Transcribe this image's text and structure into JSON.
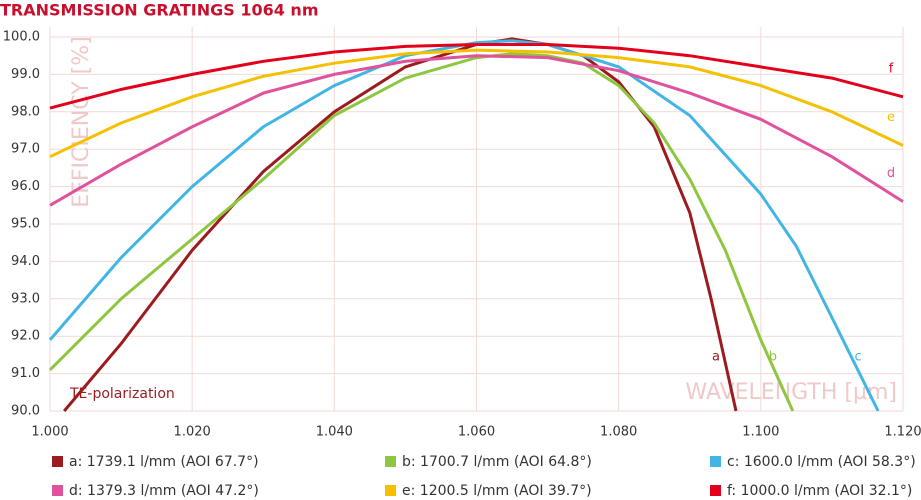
{
  "chart_data": {
    "type": "line",
    "title": "TRANSMISSION GRATINGS 1064 nm",
    "ylabel": "EFFICIENCY [%]",
    "xlabel": "WAVELENGTH [µm]",
    "annotation": "TE-polarization",
    "xlim": [
      1.0,
      1.12
    ],
    "ylim": [
      90,
      100
    ],
    "grid": true,
    "xticks": [
      {
        "value": 1.0,
        "label": "1.000"
      },
      {
        "value": 1.02,
        "label": "1.020"
      },
      {
        "value": 1.04,
        "label": "1.040"
      },
      {
        "value": 1.06,
        "label": "1.060"
      },
      {
        "value": 1.08,
        "label": "1.080"
      },
      {
        "value": 1.1,
        "label": "1.100"
      },
      {
        "value": 1.12,
        "label": "1.120"
      }
    ],
    "yticks": [
      {
        "value": 90,
        "label": "90.0"
      },
      {
        "value": 91,
        "label": "91.0"
      },
      {
        "value": 92,
        "label": "92.0"
      },
      {
        "value": 93,
        "label": "93.0"
      },
      {
        "value": 94,
        "label": "94.0"
      },
      {
        "value": 95,
        "label": "95.0"
      },
      {
        "value": 96,
        "label": "96.0"
      },
      {
        "value": 97,
        "label": "97.0"
      },
      {
        "value": 98,
        "label": "98.0"
      },
      {
        "value": 99,
        "label": "99.0"
      },
      {
        "value": 100,
        "label": "100.0"
      }
    ],
    "series": [
      {
        "name": "a: 1739.1 l/mm (AOI 67.7°)",
        "label": "a",
        "color": "#9b1b1e",
        "x": [
          1.002,
          1.01,
          1.02,
          1.03,
          1.04,
          1.05,
          1.06,
          1.065,
          1.07,
          1.075,
          1.08,
          1.085,
          1.09,
          1.093,
          1.0965
        ],
        "values": [
          90.0,
          91.8,
          94.3,
          96.4,
          98.0,
          99.2,
          99.8,
          99.95,
          99.8,
          99.5,
          98.8,
          97.6,
          95.3,
          93.0,
          90.0
        ]
      },
      {
        "name": "b: 1700.7 l/mm (AOI 64.8°)",
        "label": "b",
        "color": "#8dc63f",
        "x": [
          1.0,
          1.01,
          1.02,
          1.03,
          1.04,
          1.05,
          1.06,
          1.065,
          1.07,
          1.075,
          1.08,
          1.085,
          1.09,
          1.095,
          1.1,
          1.1045
        ],
        "values": [
          91.1,
          93.0,
          94.6,
          96.2,
          97.9,
          98.9,
          99.45,
          99.55,
          99.5,
          99.3,
          98.7,
          97.7,
          96.2,
          94.3,
          91.9,
          90.0
        ]
      },
      {
        "name": "c: 1600.0 l/mm (AOI 58.3°)",
        "label": "c",
        "color": "#41b6e6",
        "x": [
          1.0,
          1.01,
          1.02,
          1.03,
          1.04,
          1.05,
          1.06,
          1.065,
          1.07,
          1.08,
          1.09,
          1.1,
          1.105,
          1.11,
          1.1165
        ],
        "values": [
          91.9,
          94.1,
          96.0,
          97.6,
          98.7,
          99.5,
          99.85,
          99.9,
          99.8,
          99.2,
          97.9,
          95.8,
          94.4,
          92.5,
          90.0
        ]
      },
      {
        "name": "d: 1379.3 l/mm (AOI 47.2°)",
        "label": "d",
        "color": "#e0529c",
        "x": [
          1.0,
          1.01,
          1.02,
          1.03,
          1.04,
          1.05,
          1.06,
          1.07,
          1.08,
          1.09,
          1.1,
          1.11,
          1.12
        ],
        "values": [
          95.5,
          96.6,
          97.6,
          98.5,
          99.0,
          99.35,
          99.5,
          99.45,
          99.1,
          98.5,
          97.8,
          96.8,
          95.6
        ]
      },
      {
        "name": "e: 1200.5 l/mm (AOI 39.7°)",
        "label": "e",
        "color": "#f5c000",
        "x": [
          1.0,
          1.01,
          1.02,
          1.03,
          1.04,
          1.05,
          1.06,
          1.07,
          1.08,
          1.09,
          1.1,
          1.11,
          1.12
        ],
        "values": [
          96.8,
          97.7,
          98.4,
          98.95,
          99.3,
          99.55,
          99.65,
          99.6,
          99.45,
          99.2,
          98.7,
          98.0,
          97.1
        ]
      },
      {
        "name": "f: 1000.0 l/mm (AOI 32.1°)",
        "label": "f",
        "color": "#e3001b",
        "x": [
          1.0,
          1.01,
          1.02,
          1.03,
          1.04,
          1.05,
          1.06,
          1.07,
          1.08,
          1.09,
          1.1,
          1.11,
          1.12
        ],
        "values": [
          98.1,
          98.6,
          99.0,
          99.35,
          99.6,
          99.75,
          99.8,
          99.8,
          99.7,
          99.5,
          99.2,
          98.9,
          98.4
        ]
      }
    ]
  }
}
